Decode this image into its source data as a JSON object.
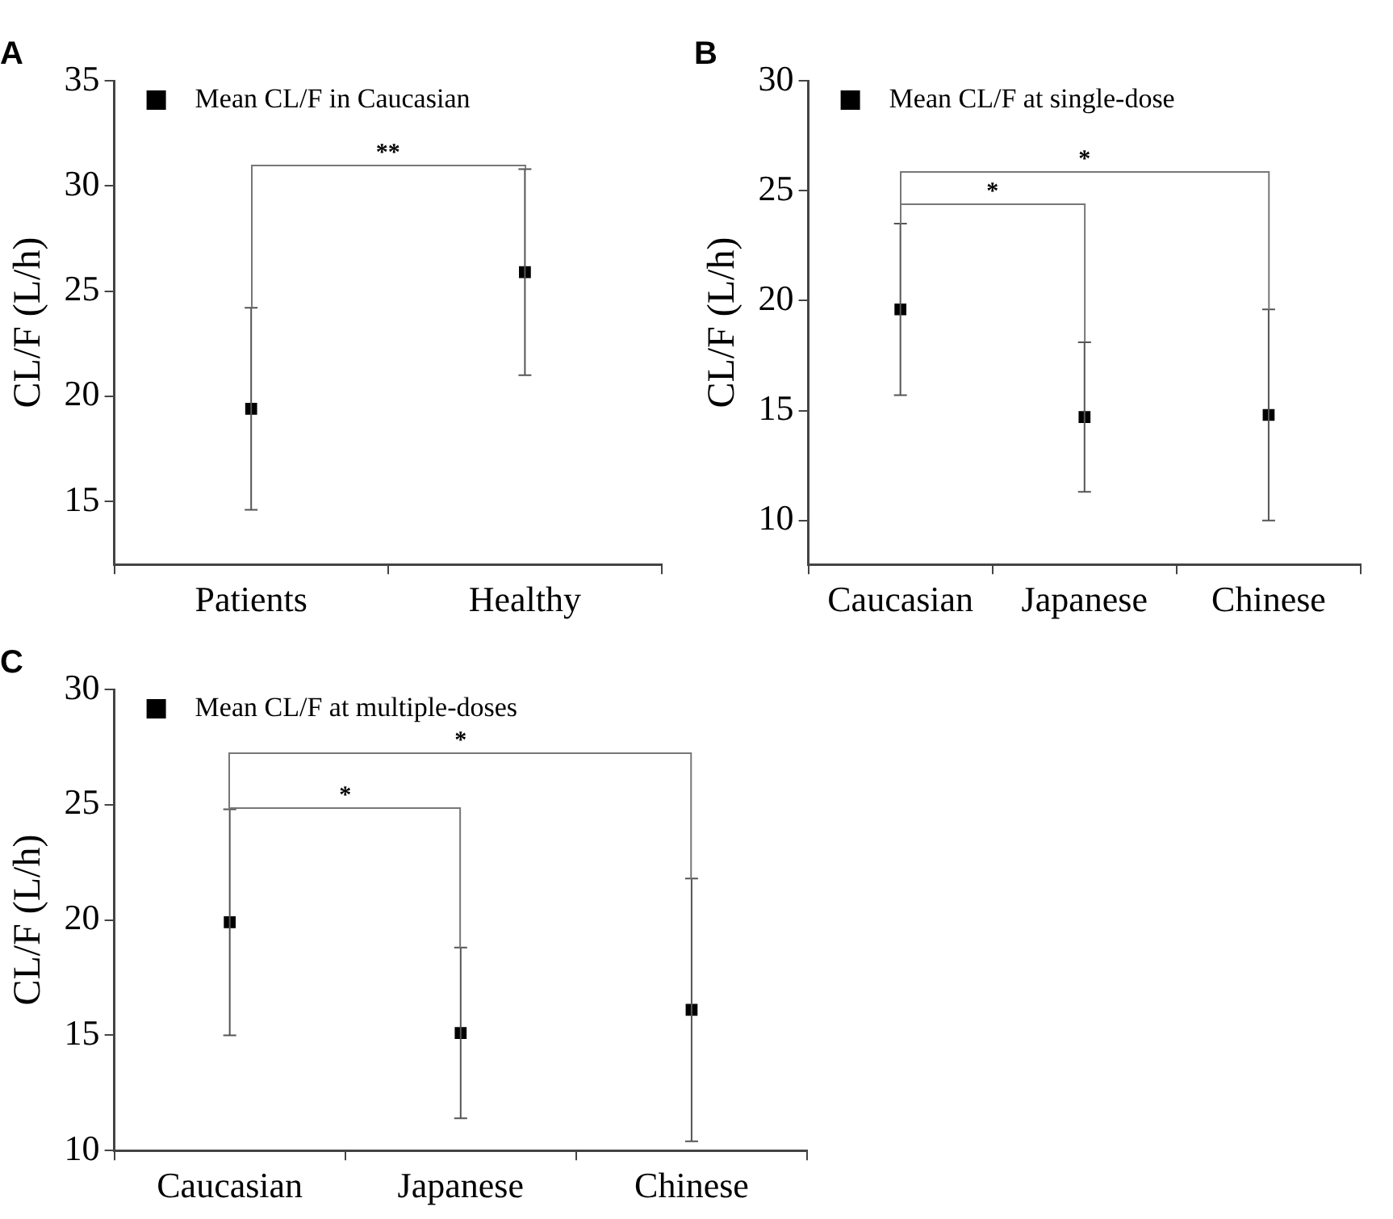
{
  "chart_data": [
    {
      "type": "scatter",
      "title": "A",
      "ylabel": "CL/F (L/h)",
      "categories": [
        "Patients",
        "Healthy"
      ],
      "ylim": [
        12,
        35
      ],
      "yticks": [
        15,
        20,
        25,
        30,
        35
      ],
      "grid": false,
      "legend": "top left",
      "marker": "square",
      "series": [
        {
          "name": "Mean CL/F in Caucasian",
          "color": "#000000",
          "values": [
            19.4,
            25.9
          ],
          "errors": [
            [
              14.6,
              24.2
            ],
            [
              21.0,
              30.8
            ]
          ]
        }
      ],
      "annotations": [
        "**"
      ]
    },
    {
      "type": "scatter",
      "title": "B",
      "ylabel": "CL/F (L/h)",
      "categories": [
        "Caucasian",
        "Japanese",
        "Chinese"
      ],
      "ylim": [
        8,
        30
      ],
      "yticks": [
        10,
        15,
        20,
        25,
        30
      ],
      "grid": false,
      "legend": "top left",
      "marker": "square",
      "series": [
        {
          "name": "Mean CL/F at single-dose",
          "color": "#000000",
          "values": [
            19.6,
            14.7,
            14.8
          ],
          "errors": [
            [
              15.7,
              23.5
            ],
            [
              11.3,
              18.1
            ],
            [
              10.0,
              19.6
            ]
          ]
        }
      ],
      "annotations": [
        "*",
        "*"
      ]
    },
    {
      "type": "scatter",
      "title": "C",
      "ylabel": "CL/F (L/h)",
      "categories": [
        "Caucasian",
        "Japanese",
        "Chinese"
      ],
      "ylim": [
        10,
        30
      ],
      "yticks": [
        10,
        15,
        20,
        25,
        30
      ],
      "grid": false,
      "legend": "top left",
      "marker": "square",
      "series": [
        {
          "name": "Mean CL/F at multiple-doses",
          "color": "#000000",
          "values": [
            19.9,
            15.1,
            16.1
          ],
          "errors": [
            [
              15.0,
              24.8
            ],
            [
              11.4,
              18.8
            ],
            [
              10.4,
              21.8
            ]
          ]
        }
      ],
      "annotations": [
        "*",
        "*"
      ]
    }
  ]
}
